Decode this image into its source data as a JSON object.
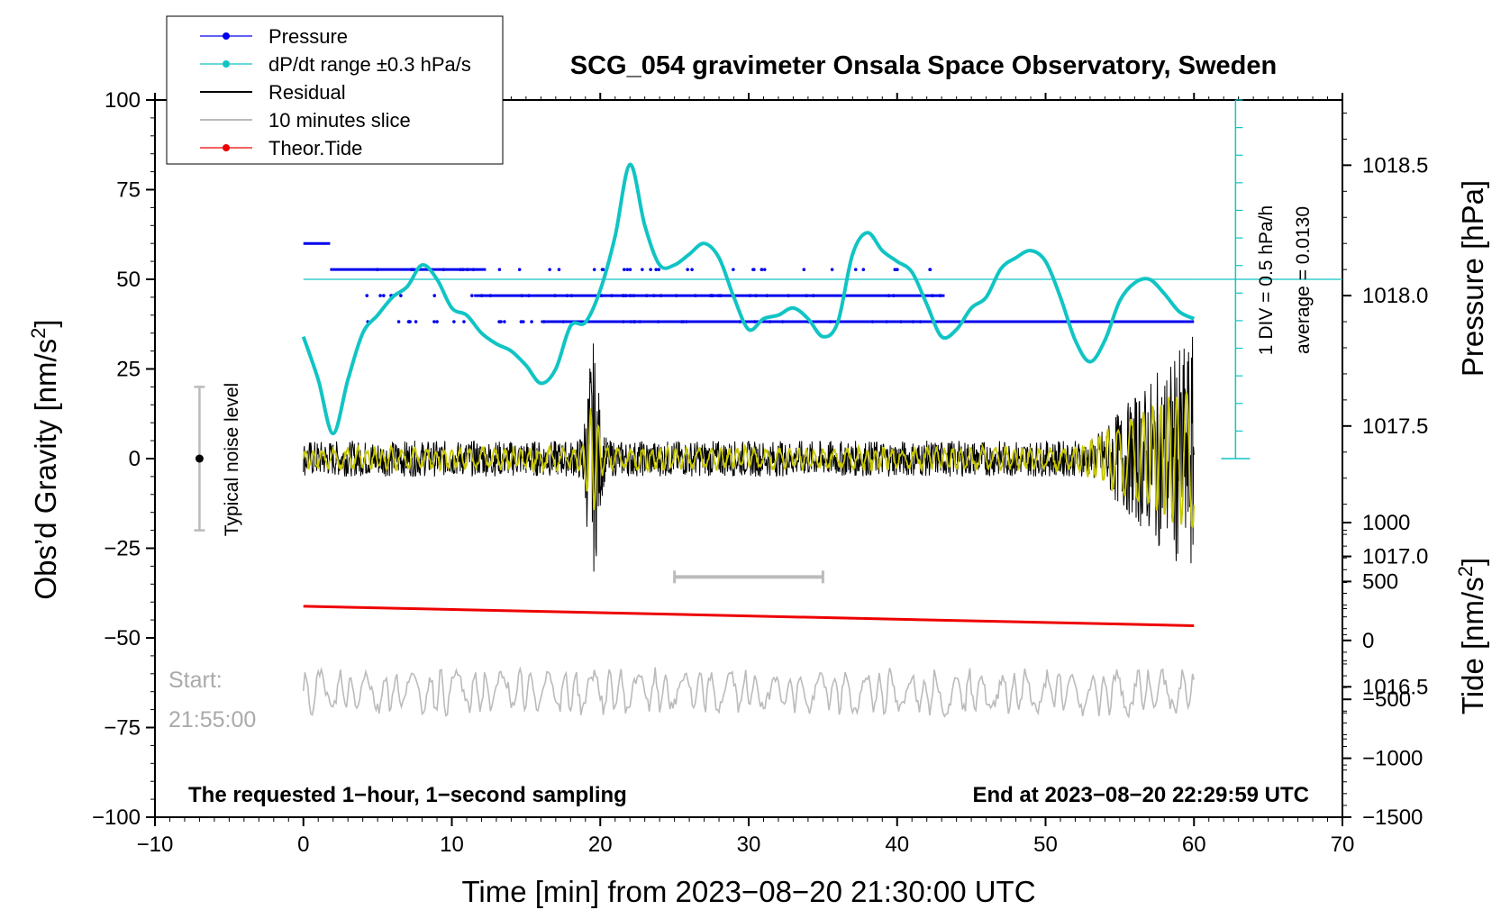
{
  "chart_data": {
    "type": "line",
    "title": "SCG_054 gravimeter Onsala Space Observatory, Sweden",
    "xlabel": "Time [min] from 2023−08−20 21:30:00 UTC",
    "ylabel_left": "Obs’d Gravity [nm/s",
    "ylabel_left_sup": "2",
    "ylabel_left_end": "]",
    "ylabel_right_pressure": "Pressure [hPa]",
    "ylabel_right_tide": "Tide [nm/s",
    "ylabel_right_tide_sup": "2",
    "ylabel_right_tide_end": "]",
    "xlim": [
      -10,
      70
    ],
    "ylim": [
      -100,
      100
    ],
    "pressure_lim": [
      1016.0,
      1018.75
    ],
    "tide_lim": [
      -1500,
      1000
    ],
    "x_ticks": [
      "−10",
      "0",
      "10",
      "20",
      "30",
      "40",
      "50",
      "60",
      "70"
    ],
    "y_ticks": [
      "100",
      "75",
      "50",
      "25",
      "0",
      "−25",
      "−50",
      "−75",
      "−100"
    ],
    "pressure_ticks": [
      "1018.5",
      "1018.0",
      "1017.5",
      "1017.0",
      "1016.5"
    ],
    "tide_ticks": [
      "1000",
      "500",
      "0",
      "−500",
      "−1000",
      "−1500"
    ],
    "legend": [
      {
        "label": "Pressure",
        "color": "#0000ee",
        "marker": true
      },
      {
        "label": "dP/dt range ±0.3 hPa/s",
        "color": "#11c4c4",
        "marker": true
      },
      {
        "label": "Residual",
        "color": "#000000",
        "marker": false
      },
      {
        "label": "10 minutes slice",
        "color": "#bbbbbb",
        "marker": false
      },
      {
        "label": "Theor.Tide",
        "color": "#ee0000",
        "marker": true
      }
    ],
    "pressure_rows": [
      {
        "hpa": 1018.2,
        "x_from": 0.0,
        "x_to": 1.8,
        "dense": true
      },
      {
        "hpa": 1018.1,
        "x_from": 1.8,
        "x_to": 12.3,
        "dense": true
      },
      {
        "hpa": 1018.0,
        "x_from": 11.5,
        "x_to": 43.2,
        "dense": true
      },
      {
        "hpa": 1017.9,
        "x_from": 16.0,
        "x_to": 60.0,
        "dense": true
      }
    ],
    "cyan_series": {
      "name": "dP/dt",
      "x": [
        0,
        1,
        2,
        3,
        4,
        5,
        6,
        7,
        8,
        9,
        10,
        11,
        12,
        13,
        14,
        15,
        16,
        17,
        18,
        19,
        20,
        21,
        22,
        23,
        24,
        25,
        26,
        27,
        28,
        29,
        30,
        31,
        32,
        33,
        34,
        35,
        36,
        37,
        38,
        39,
        40,
        41,
        42,
        43,
        44,
        45,
        46,
        47,
        48,
        49,
        50,
        51,
        52,
        53,
        54,
        55,
        56,
        57,
        58,
        59,
        60
      ],
      "y": [
        34,
        22,
        7,
        22,
        35,
        40,
        45,
        48,
        54,
        50,
        42,
        40,
        35,
        32,
        30,
        26,
        21,
        25,
        37,
        38,
        47,
        62,
        82,
        65,
        54,
        54,
        57,
        60,
        56,
        45,
        36,
        39,
        40,
        42,
        39,
        34,
        38,
        57,
        63,
        58,
        55,
        52,
        43,
        34,
        36,
        42,
        45,
        53,
        56,
        58,
        55,
        45,
        33,
        27,
        33,
        44,
        49,
        50,
        46,
        41,
        39
      ]
    },
    "cyan_hline": 50,
    "residual": {
      "name": "Residual",
      "x_from": 0,
      "x_to": 60,
      "baseline": 0
    },
    "tide": {
      "name": "Theor.Tide",
      "x": [
        0,
        60
      ],
      "tide_values": [
        290,
        125
      ]
    },
    "slice": {
      "name": "10 minutes slice",
      "x": [
        25,
        35
      ],
      "y": -33
    },
    "noise": {
      "label": "Typical noise level",
      "x": -7,
      "y_range": [
        -20,
        20
      ],
      "center": 0
    },
    "scale_bar": {
      "label_div": "1 DIV = 0.5 hPa/h",
      "label_avg": "average = 0.0130",
      "x": 62.8
    },
    "start_label_1": "Start:",
    "start_label_2": "21:55:00",
    "footer_left": "The requested 1−hour, 1−second sampling",
    "footer_right": "End at 2023−08−20 22:29:59 UTC"
  }
}
